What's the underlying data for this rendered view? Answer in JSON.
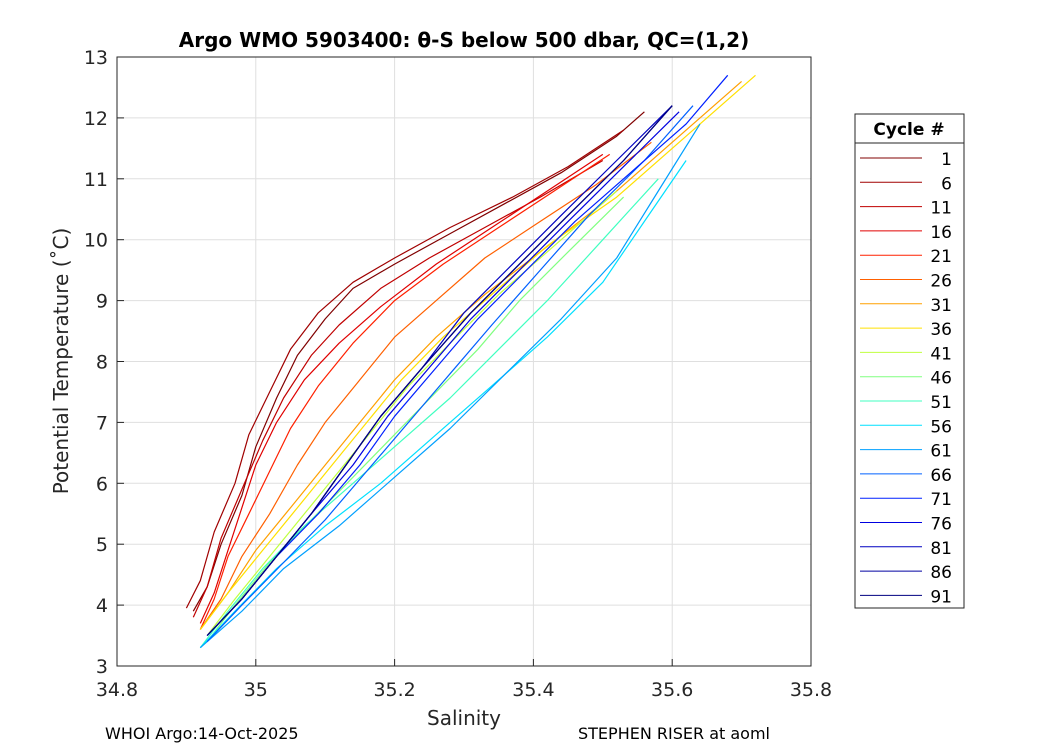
{
  "chart_data": {
    "type": "line",
    "title": "Argo WMO 5903400: θ-S below 500 dbar,  QC=(1,2)",
    "xlabel": "Salinity",
    "ylabel": "Potential Temperature (˚C)",
    "xlim": [
      34.8,
      35.8
    ],
    "ylim": [
      3,
      13
    ],
    "xticks": [
      34.8,
      35.0,
      35.2,
      35.4,
      35.6,
      35.8
    ],
    "xtick_labels": [
      "34.8",
      "35",
      "35.2",
      "35.4",
      "35.6",
      "35.8"
    ],
    "yticks": [
      3,
      4,
      5,
      6,
      7,
      8,
      9,
      10,
      11,
      12,
      13
    ],
    "grid": true,
    "colormap": "jet",
    "legend_title": "Cycle #",
    "legend_placement": "right-outside",
    "series": [
      {
        "name": "1",
        "color": "#800000",
        "salinity": [
          34.91,
          34.93,
          34.95,
          34.98,
          35.0,
          35.03,
          35.06,
          35.1,
          35.14,
          35.2,
          35.28,
          35.36,
          35.44,
          35.52,
          35.56
        ],
        "theta": [
          3.9,
          4.3,
          5.0,
          5.8,
          6.6,
          7.4,
          8.1,
          8.7,
          9.2,
          9.6,
          10.1,
          10.6,
          11.1,
          11.7,
          12.1
        ]
      },
      {
        "name": "6",
        "color": "#A00000",
        "salinity": [
          34.9,
          34.92,
          34.94,
          34.97,
          34.99,
          35.02,
          35.05,
          35.09,
          35.14,
          35.2,
          35.28,
          35.37,
          35.45,
          35.53
        ],
        "theta": [
          3.95,
          4.4,
          5.2,
          6.0,
          6.8,
          7.5,
          8.2,
          8.8,
          9.3,
          9.7,
          10.2,
          10.7,
          11.2,
          11.8
        ]
      },
      {
        "name": "11",
        "color": "#C00000",
        "salinity": [
          34.91,
          34.93,
          34.95,
          34.98,
          35.01,
          35.04,
          35.08,
          35.12,
          35.18,
          35.25,
          35.33,
          35.41,
          35.5
        ],
        "theta": [
          3.8,
          4.3,
          5.1,
          5.9,
          6.7,
          7.4,
          8.1,
          8.6,
          9.2,
          9.7,
          10.2,
          10.7,
          11.3
        ]
      },
      {
        "name": "16",
        "color": "#E00000",
        "salinity": [
          34.92,
          34.94,
          34.96,
          34.98,
          35.0,
          35.03,
          35.07,
          35.12,
          35.18,
          35.26,
          35.34,
          35.42,
          35.5
        ],
        "theta": [
          3.7,
          4.2,
          4.9,
          5.6,
          6.3,
          7.0,
          7.7,
          8.3,
          8.9,
          9.6,
          10.2,
          10.8,
          11.4
        ]
      },
      {
        "name": "21",
        "color": "#FF2000",
        "salinity": [
          34.92,
          34.94,
          34.96,
          34.99,
          35.02,
          35.05,
          35.09,
          35.14,
          35.2,
          35.27,
          35.35,
          35.43,
          35.51
        ],
        "theta": [
          3.6,
          4.1,
          4.8,
          5.5,
          6.2,
          6.9,
          7.6,
          8.3,
          9.0,
          9.6,
          10.2,
          10.8,
          11.4
        ]
      },
      {
        "name": "26",
        "color": "#FF6000",
        "salinity": [
          34.92,
          34.95,
          34.98,
          35.02,
          35.06,
          35.1,
          35.15,
          35.2,
          35.26,
          35.33,
          35.41,
          35.49,
          35.57
        ],
        "theta": [
          3.6,
          4.1,
          4.8,
          5.5,
          6.3,
          7.0,
          7.7,
          8.4,
          9.0,
          9.7,
          10.3,
          10.9,
          11.6
        ]
      },
      {
        "name": "31",
        "color": "#FFA000",
        "salinity": [
          34.92,
          34.96,
          35.0,
          35.05,
          35.1,
          35.15,
          35.2,
          35.26,
          35.33,
          35.41,
          35.5,
          35.6,
          35.7
        ],
        "theta": [
          3.6,
          4.2,
          4.9,
          5.6,
          6.3,
          7.0,
          7.7,
          8.4,
          9.1,
          9.8,
          10.6,
          11.6,
          12.6
        ]
      },
      {
        "name": "36",
        "color": "#FFE000",
        "salinity": [
          34.92,
          34.96,
          35.01,
          35.06,
          35.11,
          35.16,
          35.21,
          35.27,
          35.34,
          35.42,
          35.52,
          35.62,
          35.72
        ],
        "theta": [
          3.6,
          4.2,
          4.9,
          5.6,
          6.3,
          7.0,
          7.7,
          8.4,
          9.1,
          9.9,
          10.7,
          11.7,
          12.7
        ]
      },
      {
        "name": "41",
        "color": "#C0FF40",
        "salinity": [
          34.93,
          34.97,
          35.02,
          35.07,
          35.12,
          35.17,
          35.22,
          35.28,
          35.35,
          35.43,
          35.52
        ],
        "theta": [
          3.5,
          4.1,
          4.8,
          5.5,
          6.2,
          6.9,
          7.6,
          8.3,
          9.1,
          9.9,
          10.8
        ]
      },
      {
        "name": "46",
        "color": "#80FF80",
        "salinity": [
          34.93,
          34.97,
          35.02,
          35.08,
          35.14,
          35.2,
          35.26,
          35.32,
          35.38,
          35.45,
          35.53
        ],
        "theta": [
          3.4,
          4.0,
          4.7,
          5.4,
          6.1,
          6.8,
          7.5,
          8.2,
          9.0,
          9.8,
          10.7
        ]
      },
      {
        "name": "51",
        "color": "#40FFC0",
        "salinity": [
          34.92,
          34.96,
          35.01,
          35.07,
          35.14,
          35.21,
          35.28,
          35.35,
          35.42,
          35.5,
          35.58
        ],
        "theta": [
          3.3,
          3.9,
          4.6,
          5.3,
          6.0,
          6.7,
          7.4,
          8.2,
          9.0,
          10.0,
          11.0
        ]
      },
      {
        "name": "56",
        "color": "#00E0FF",
        "salinity": [
          34.92,
          34.97,
          35.03,
          35.1,
          35.18,
          35.26,
          35.34,
          35.42,
          35.5,
          35.56,
          35.62
        ],
        "theta": [
          3.3,
          3.9,
          4.6,
          5.3,
          6.0,
          6.8,
          7.6,
          8.4,
          9.3,
          10.3,
          11.3
        ]
      },
      {
        "name": "61",
        "color": "#00A0FF",
        "salinity": [
          34.92,
          34.98,
          35.04,
          35.12,
          35.2,
          35.28,
          35.36,
          35.44,
          35.52,
          35.58,
          35.64
        ],
        "theta": [
          3.3,
          3.9,
          4.6,
          5.3,
          6.1,
          6.9,
          7.8,
          8.7,
          9.7,
          10.8,
          11.9
        ]
      },
      {
        "name": "66",
        "color": "#0060FF",
        "salinity": [
          34.93,
          34.98,
          35.04,
          35.1,
          35.16,
          35.22,
          35.28,
          35.34,
          35.41,
          35.48,
          35.56,
          35.63
        ],
        "theta": [
          3.4,
          4.0,
          4.7,
          5.4,
          6.2,
          7.0,
          7.8,
          8.6,
          9.5,
          10.4,
          11.3,
          12.2
        ]
      },
      {
        "name": "71",
        "color": "#0020FF",
        "salinity": [
          34.93,
          34.98,
          35.03,
          35.09,
          35.15,
          35.2,
          35.26,
          35.32,
          35.39,
          35.46,
          35.54,
          35.62,
          35.68
        ],
        "theta": [
          3.5,
          4.1,
          4.8,
          5.5,
          6.3,
          7.1,
          7.9,
          8.7,
          9.5,
          10.3,
          11.1,
          11.9,
          12.7
        ]
      },
      {
        "name": "76",
        "color": "#0000E0",
        "salinity": [
          34.93,
          34.98,
          35.03,
          35.08,
          35.14,
          35.19,
          35.25,
          35.31,
          35.38,
          35.45,
          35.53,
          35.61
        ],
        "theta": [
          3.5,
          4.1,
          4.8,
          5.5,
          6.3,
          7.1,
          7.9,
          8.7,
          9.5,
          10.3,
          11.2,
          12.1
        ]
      },
      {
        "name": "81",
        "color": "#0000C0",
        "salinity": [
          34.93,
          34.98,
          35.03,
          35.08,
          35.13,
          35.18,
          35.24,
          35.3,
          35.37,
          35.44,
          35.52,
          35.6
        ],
        "theta": [
          3.5,
          4.1,
          4.8,
          5.5,
          6.3,
          7.1,
          7.9,
          8.8,
          9.6,
          10.4,
          11.3,
          12.2
        ]
      },
      {
        "name": "86",
        "color": "#0000A0",
        "salinity": [
          34.93,
          34.98,
          35.03,
          35.08,
          35.13,
          35.18,
          35.24,
          35.31,
          35.38,
          35.45,
          35.53,
          35.6
        ],
        "theta": [
          3.5,
          4.1,
          4.8,
          5.5,
          6.3,
          7.1,
          7.9,
          8.8,
          9.6,
          10.4,
          11.3,
          12.2
        ]
      },
      {
        "name": "91",
        "color": "#000080",
        "salinity": [
          34.93,
          34.98,
          35.03,
          35.08,
          35.13,
          35.18,
          35.24,
          35.31,
          35.38,
          35.45,
          35.53,
          35.6
        ],
        "theta": [
          3.5,
          4.1,
          4.8,
          5.5,
          6.3,
          7.1,
          7.9,
          8.8,
          9.6,
          10.4,
          11.3,
          12.2
        ]
      }
    ]
  },
  "footer": {
    "left": "WHOI Argo:14-Oct-2025",
    "right": "STEPHEN RISER at aoml"
  }
}
